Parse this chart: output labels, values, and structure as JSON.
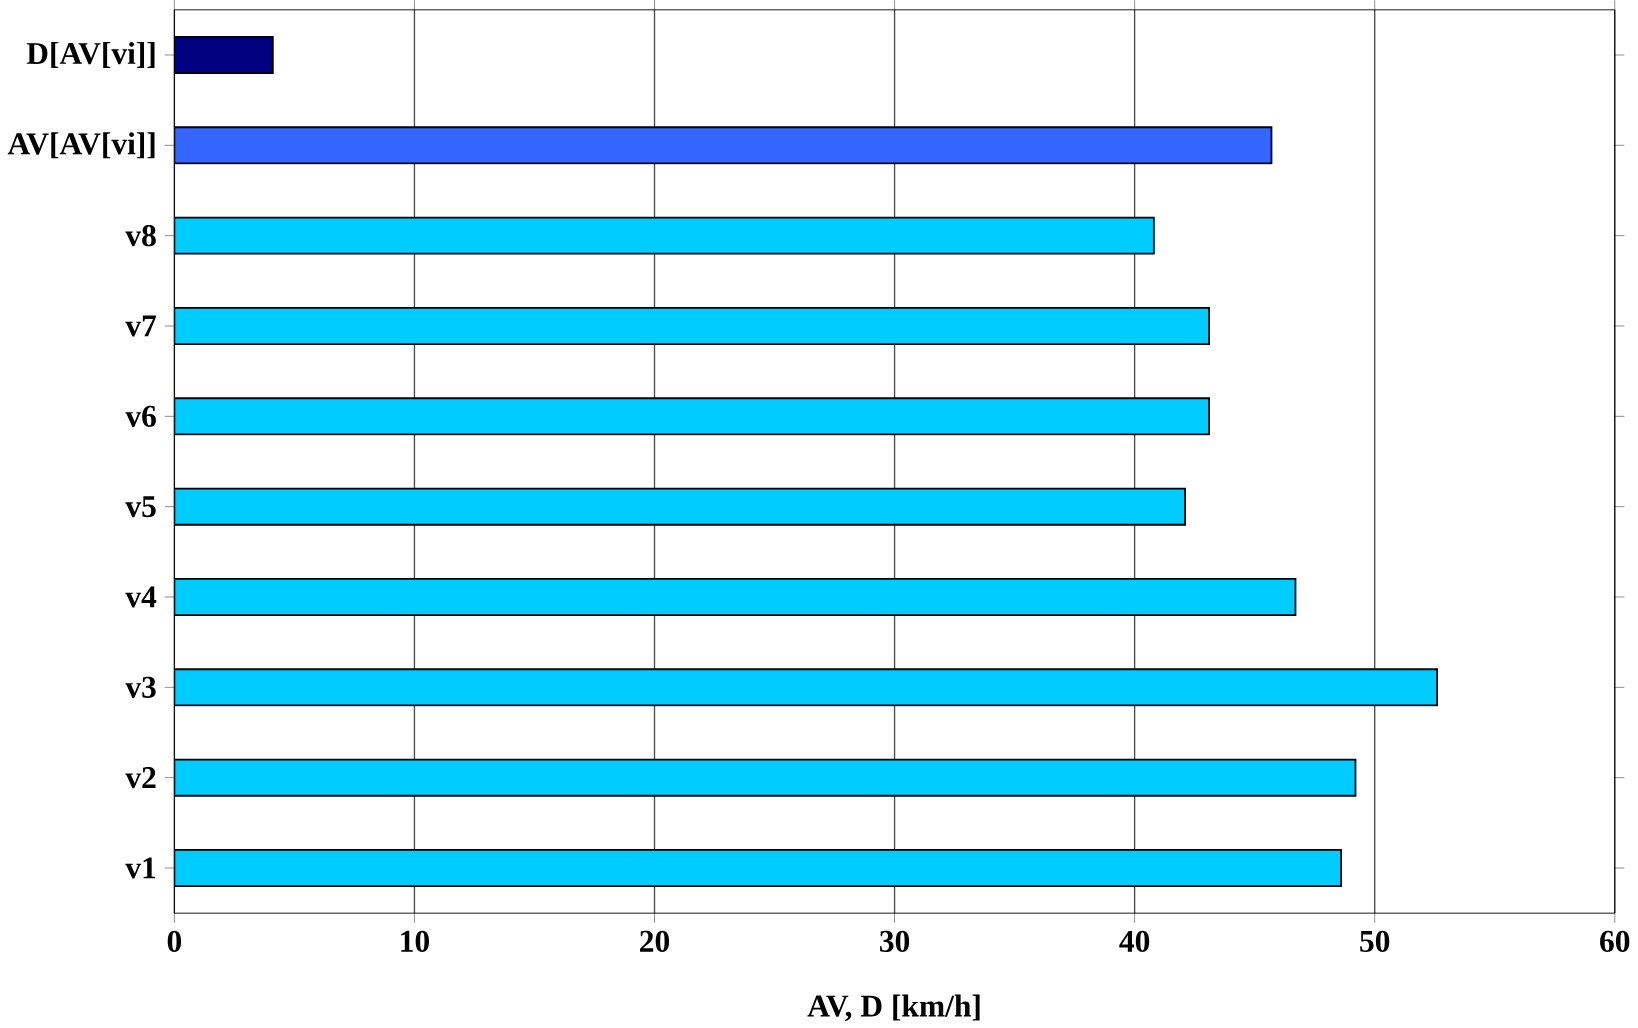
{
  "chart_data": {
    "type": "bar",
    "orientation": "horizontal",
    "xlabel": "AV, D [km/h]",
    "categories": [
      "D[AV[vi]]",
      "AV[AV[vi]]",
      "v8",
      "v7",
      "v6",
      "v5",
      "v4",
      "v3",
      "v2",
      "v1"
    ],
    "values": [
      4.1,
      45.7,
      40.8,
      43.1,
      43.1,
      42.1,
      46.7,
      52.6,
      49.2,
      48.6
    ],
    "colors": [
      "#000080",
      "#3366ff",
      "#00ccff",
      "#00ccff",
      "#00ccff",
      "#00ccff",
      "#00ccff",
      "#00ccff",
      "#00ccff",
      "#00ccff"
    ],
    "xlim": [
      0,
      60
    ],
    "xticks": [
      0,
      10,
      20,
      30,
      40,
      50,
      60
    ],
    "grid": "x"
  }
}
